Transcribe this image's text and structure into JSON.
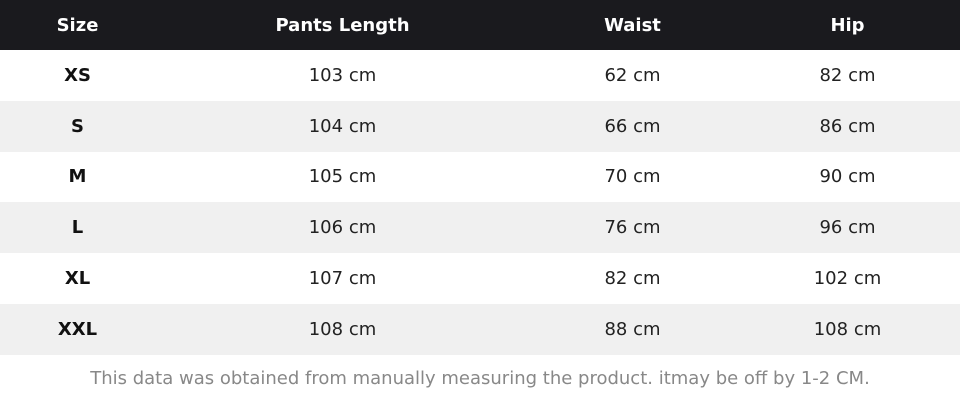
{
  "table": {
    "header": [
      "Size",
      "Pants Length",
      "Waist",
      "Hip"
    ],
    "rows": [
      [
        "XS",
        "103 cm",
        "62 cm",
        "82 cm"
      ],
      [
        "S",
        "104 cm",
        "66 cm",
        "86 cm"
      ],
      [
        "M",
        "105 cm",
        "70 cm",
        "90 cm"
      ],
      [
        "L",
        "106 cm",
        "76 cm",
        "96 cm"
      ],
      [
        "XL",
        "107 cm",
        "82 cm",
        "102 cm"
      ],
      [
        "XXL",
        "108 cm",
        "88 cm",
        "108 cm"
      ]
    ]
  },
  "note": "This data was obtained from manually measuring the product. itmay be off by 1-2 CM."
}
